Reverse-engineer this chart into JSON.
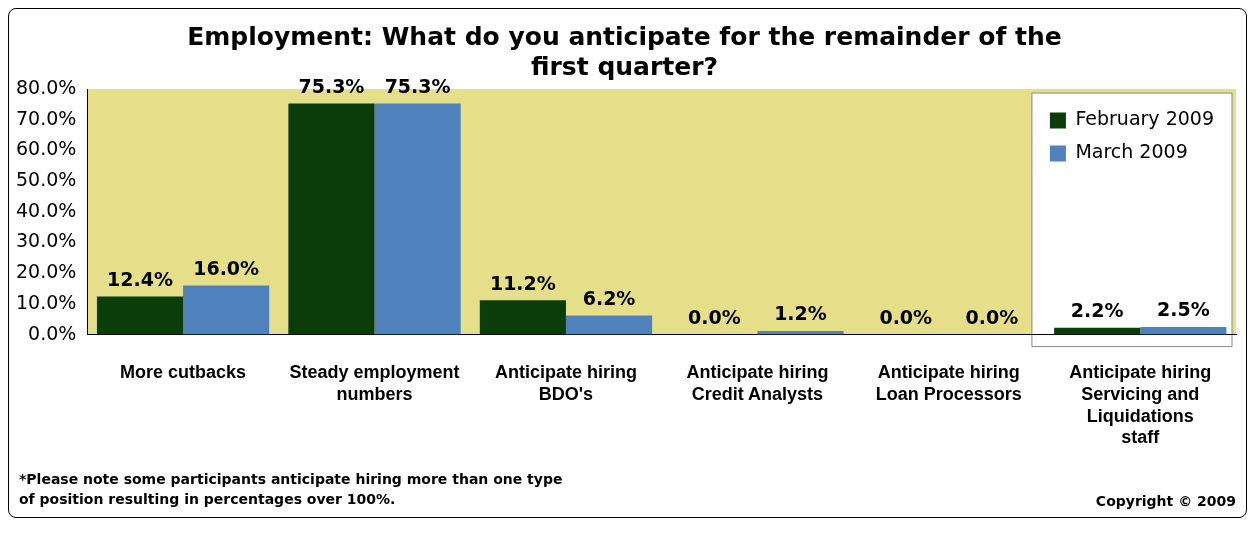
{
  "chart_data": {
    "type": "bar",
    "title": "Employment: What do you anticipate for the remainder of the first quarter?",
    "categories": [
      "More cutbacks",
      "Steady employment numbers",
      "Anticipate hiring BDO's",
      "Anticipate hiring Credit Analysts",
      "Anticipate hiring Loan Processors",
      "Anticipate hiring Servicing and Liquidations staff"
    ],
    "series": [
      {
        "name": "February 2009",
        "color": "#0b3d0b",
        "values": [
          12.4,
          75.3,
          11.2,
          0.0,
          0.0,
          2.2
        ]
      },
      {
        "name": "March 2009",
        "color": "#4f81bd",
        "values": [
          16.0,
          75.3,
          6.2,
          1.2,
          0.0,
          2.5
        ]
      }
    ],
    "value_labels": [
      [
        "12.4%",
        "75.3%",
        "11.2%",
        "0.0%",
        "0.0%",
        "2.2%"
      ],
      [
        "16.0%",
        "75.3%",
        "6.2%",
        "1.2%",
        "0.0%",
        "2.5%"
      ]
    ],
    "ylim": [
      0,
      80
    ],
    "yticks": [
      {
        "value": 0,
        "label": "0.0%"
      },
      {
        "value": 10,
        "label": "10.0%"
      },
      {
        "value": 20,
        "label": "20.0%"
      },
      {
        "value": 30,
        "label": "30.0%"
      },
      {
        "value": 40,
        "label": "40.0%"
      },
      {
        "value": 50,
        "label": "50.0%"
      },
      {
        "value": 60,
        "label": "60.0%"
      },
      {
        "value": 70,
        "label": "70.0%"
      },
      {
        "value": 80,
        "label": "80.0%"
      }
    ],
    "grid": false,
    "legend": "top right",
    "annotations": [
      "*Please note some participants anticipate hiring more than one type of position resulting in percentages over 100%.",
      "Copyright © 2009"
    ]
  }
}
